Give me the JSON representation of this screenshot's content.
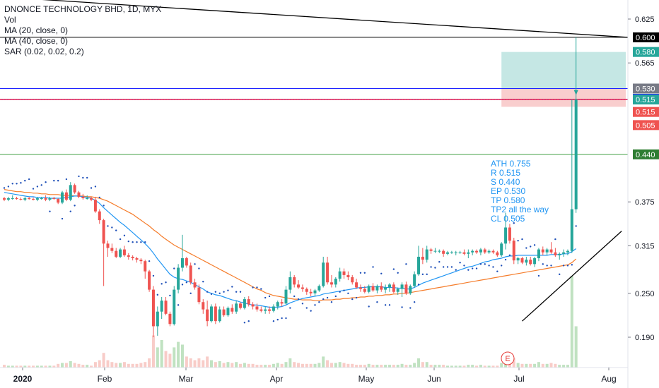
{
  "legend": {
    "title": "DNONCE TECHNOLOGY BHD, 1D, MYX",
    "vol": "Vol",
    "ma20": "MA (20, close, 0)",
    "ma40": "MA (40, close, 0)",
    "sar": "SAR (0.02, 0.02, 0.2)"
  },
  "annotation": {
    "lines": [
      "ATH 0.755",
      "R 0.515",
      "S 0.440",
      "EP 0.530",
      "TP 0.580",
      "TP2 all the way",
      "CL 0.505"
    ]
  },
  "earnings_marker": "E",
  "colors": {
    "up": "#26a69a",
    "down": "#ef5350",
    "ma20": "#2196f3",
    "ma40": "#f57c2a",
    "sar": "#1e4fb8",
    "hline_black": "#000000",
    "hline_blue": "#1e22ff",
    "hline_red": "#c2185b",
    "hline_green": "#43a047",
    "target_zone": "#b2dfdb",
    "stop_zone": "#f8c9c9"
  },
  "chart_data": {
    "type": "candlestick",
    "title": "DNONCE TECHNOLOGY BHD, 1D, MYX",
    "ylim": [
      0.145,
      0.64
    ],
    "y_ticks": [
      "0.625",
      "0.565",
      "0.375",
      "0.315",
      "0.250",
      "0.190"
    ],
    "x_tick_labels": [
      "2020",
      "Feb",
      "Mar",
      "Apr",
      "May",
      "Jun",
      "Jul",
      "Aug"
    ],
    "price_tags": [
      {
        "label": "0.600",
        "value": 0.6,
        "color": "#000000"
      },
      {
        "label": "0.580",
        "value": 0.58,
        "color": "#26a69a"
      },
      {
        "label": "0.530",
        "value": 0.53,
        "color": "#787b86"
      },
      {
        "label": "0.530",
        "value": 0.516,
        "color": "#1e22ff"
      },
      {
        "label": "0.515",
        "value": 0.515,
        "color": "#26a69a"
      },
      {
        "label": "0.515",
        "value": 0.498,
        "color": "#ef5350"
      },
      {
        "label": "0.505",
        "value": 0.48,
        "color": "#ef5350"
      },
      {
        "label": "0.440",
        "value": 0.44,
        "color": "#2e7d32"
      }
    ],
    "horizontal_lines": [
      {
        "name": "black",
        "value": 0.6
      },
      {
        "name": "blue",
        "value": 0.53
      },
      {
        "name": "red",
        "value": 0.515
      },
      {
        "name": "green",
        "value": 0.44
      }
    ],
    "trendlines": [
      {
        "from": [
          0,
          0.655
        ],
        "to": [
          146,
          0.6
        ]
      },
      {
        "from": [
          125,
          0.212
        ],
        "to": [
          149,
          0.335
        ]
      }
    ],
    "zones": {
      "target": {
        "from_bar": 120,
        "to_bar": 149,
        "top": 0.58,
        "bottom": 0.53
      },
      "stop": {
        "from_bar": 120,
        "to_bar": 149,
        "top": 0.53,
        "bottom": 0.505
      }
    },
    "candles": [
      [
        0.38,
        0.382,
        0.376,
        0.378
      ],
      [
        0.378,
        0.382,
        0.376,
        0.38
      ],
      [
        0.38,
        0.384,
        0.378,
        0.38
      ],
      [
        0.38,
        0.382,
        0.378,
        0.379
      ],
      [
        0.379,
        0.381,
        0.377,
        0.378
      ],
      [
        0.378,
        0.382,
        0.376,
        0.38
      ],
      [
        0.38,
        0.382,
        0.378,
        0.379
      ],
      [
        0.379,
        0.381,
        0.377,
        0.378
      ],
      [
        0.378,
        0.382,
        0.376,
        0.38
      ],
      [
        0.38,
        0.382,
        0.378,
        0.38
      ],
      [
        0.38,
        0.384,
        0.376,
        0.378
      ],
      [
        0.378,
        0.382,
        0.376,
        0.38
      ],
      [
        0.38,
        0.382,
        0.378,
        0.379
      ],
      [
        0.379,
        0.38,
        0.372,
        0.374
      ],
      [
        0.374,
        0.39,
        0.372,
        0.388
      ],
      [
        0.388,
        0.392,
        0.376,
        0.378
      ],
      [
        0.378,
        0.402,
        0.376,
        0.398
      ],
      [
        0.398,
        0.4,
        0.386,
        0.388
      ],
      [
        0.388,
        0.39,
        0.38,
        0.382
      ],
      [
        0.382,
        0.386,
        0.378,
        0.38
      ],
      [
        0.38,
        0.384,
        0.378,
        0.38
      ],
      [
        0.38,
        0.382,
        0.376,
        0.378
      ],
      [
        0.378,
        0.382,
        0.36,
        0.362
      ],
      [
        0.362,
        0.365,
        0.345,
        0.35
      ],
      [
        0.35,
        0.352,
        0.26,
        0.318
      ],
      [
        0.318,
        0.322,
        0.3,
        0.312
      ],
      [
        0.312,
        0.318,
        0.305,
        0.308
      ],
      [
        0.308,
        0.312,
        0.298,
        0.3
      ],
      [
        0.3,
        0.312,
        0.298,
        0.31
      ],
      [
        0.31,
        0.315,
        0.3,
        0.302
      ],
      [
        0.302,
        0.305,
        0.296,
        0.3
      ],
      [
        0.3,
        0.302,
        0.295,
        0.298
      ],
      [
        0.298,
        0.3,
        0.292,
        0.296
      ],
      [
        0.296,
        0.298,
        0.29,
        0.294
      ],
      [
        0.294,
        0.296,
        0.27,
        0.28
      ],
      [
        0.28,
        0.282,
        0.252,
        0.255
      ],
      [
        0.255,
        0.26,
        0.19,
        0.205
      ],
      [
        0.205,
        0.232,
        0.192,
        0.225
      ],
      [
        0.225,
        0.245,
        0.215,
        0.24
      ],
      [
        0.24,
        0.245,
        0.22,
        0.222
      ],
      [
        0.222,
        0.225,
        0.205,
        0.208
      ],
      [
        0.208,
        0.26,
        0.206,
        0.255
      ],
      [
        0.255,
        0.29,
        0.25,
        0.285
      ],
      [
        0.285,
        0.33,
        0.28,
        0.298
      ],
      [
        0.298,
        0.3,
        0.285,
        0.288
      ],
      [
        0.288,
        0.292,
        0.262,
        0.265
      ],
      [
        0.265,
        0.27,
        0.255,
        0.258
      ],
      [
        0.258,
        0.262,
        0.235,
        0.238
      ],
      [
        0.238,
        0.242,
        0.222,
        0.228
      ],
      [
        0.228,
        0.24,
        0.205,
        0.212
      ],
      [
        0.212,
        0.235,
        0.21,
        0.232
      ],
      [
        0.232,
        0.236,
        0.208,
        0.212
      ],
      [
        0.212,
        0.232,
        0.21,
        0.228
      ],
      [
        0.228,
        0.232,
        0.218,
        0.22
      ],
      [
        0.22,
        0.232,
        0.218,
        0.23
      ],
      [
        0.23,
        0.235,
        0.222,
        0.225
      ],
      [
        0.225,
        0.24,
        0.222,
        0.236
      ],
      [
        0.236,
        0.238,
        0.228,
        0.23
      ],
      [
        0.23,
        0.245,
        0.228,
        0.242
      ],
      [
        0.242,
        0.246,
        0.232,
        0.235
      ],
      [
        0.235,
        0.238,
        0.228,
        0.232
      ],
      [
        0.232,
        0.236,
        0.225,
        0.228
      ],
      [
        0.228,
        0.232,
        0.224,
        0.226
      ],
      [
        0.226,
        0.232,
        0.222,
        0.228
      ],
      [
        0.228,
        0.232,
        0.222,
        0.226
      ],
      [
        0.226,
        0.235,
        0.224,
        0.232
      ],
      [
        0.232,
        0.24,
        0.228,
        0.238
      ],
      [
        0.238,
        0.242,
        0.232,
        0.236
      ],
      [
        0.236,
        0.26,
        0.234,
        0.255
      ],
      [
        0.255,
        0.28,
        0.25,
        0.272
      ],
      [
        0.272,
        0.275,
        0.258,
        0.262
      ],
      [
        0.262,
        0.268,
        0.256,
        0.258
      ],
      [
        0.258,
        0.262,
        0.252,
        0.256
      ],
      [
        0.256,
        0.258,
        0.248,
        0.252
      ],
      [
        0.252,
        0.256,
        0.246,
        0.25
      ],
      [
        0.25,
        0.256,
        0.246,
        0.254
      ],
      [
        0.254,
        0.262,
        0.252,
        0.26
      ],
      [
        0.26,
        0.3,
        0.258,
        0.292
      ],
      [
        0.292,
        0.3,
        0.262,
        0.265
      ],
      [
        0.265,
        0.275,
        0.258,
        0.262
      ],
      [
        0.262,
        0.272,
        0.258,
        0.27
      ],
      [
        0.27,
        0.285,
        0.266,
        0.28
      ],
      [
        0.28,
        0.284,
        0.27,
        0.275
      ],
      [
        0.275,
        0.28,
        0.268,
        0.272
      ],
      [
        0.272,
        0.275,
        0.262,
        0.265
      ],
      [
        0.265,
        0.27,
        0.256,
        0.258
      ],
      [
        0.258,
        0.262,
        0.252,
        0.256
      ],
      [
        0.256,
        0.26,
        0.25,
        0.252
      ],
      [
        0.252,
        0.262,
        0.25,
        0.26
      ],
      [
        0.26,
        0.264,
        0.252,
        0.254
      ],
      [
        0.254,
        0.262,
        0.25,
        0.26
      ],
      [
        0.26,
        0.265,
        0.252,
        0.255
      ],
      [
        0.255,
        0.262,
        0.25,
        0.258
      ],
      [
        0.258,
        0.264,
        0.252,
        0.262
      ],
      [
        0.262,
        0.265,
        0.25,
        0.252
      ],
      [
        0.252,
        0.258,
        0.248,
        0.256
      ],
      [
        0.256,
        0.265,
        0.245,
        0.262
      ],
      [
        0.262,
        0.266,
        0.248,
        0.25
      ],
      [
        0.25,
        0.262,
        0.248,
        0.26
      ],
      [
        0.26,
        0.28,
        0.258,
        0.276
      ],
      [
        0.276,
        0.315,
        0.274,
        0.3
      ],
      [
        0.3,
        0.312,
        0.29,
        0.296
      ],
      [
        0.296,
        0.315,
        0.292,
        0.31
      ],
      [
        0.31,
        0.312,
        0.304,
        0.308
      ],
      [
        0.308,
        0.312,
        0.305,
        0.308
      ],
      [
        0.308,
        0.31,
        0.305,
        0.308
      ],
      [
        0.308,
        0.31,
        0.3,
        0.304
      ],
      [
        0.304,
        0.308,
        0.302,
        0.306
      ],
      [
        0.306,
        0.308,
        0.304,
        0.306
      ],
      [
        0.306,
        0.308,
        0.302,
        0.306
      ],
      [
        0.306,
        0.308,
        0.304,
        0.306
      ],
      [
        0.306,
        0.31,
        0.302,
        0.304
      ],
      [
        0.304,
        0.31,
        0.298,
        0.306
      ],
      [
        0.306,
        0.31,
        0.302,
        0.308
      ],
      [
        0.308,
        0.31,
        0.304,
        0.306
      ],
      [
        0.306,
        0.312,
        0.302,
        0.31
      ],
      [
        0.31,
        0.312,
        0.304,
        0.306
      ],
      [
        0.306,
        0.31,
        0.304,
        0.308
      ],
      [
        0.308,
        0.31,
        0.304,
        0.306
      ],
      [
        0.306,
        0.308,
        0.3,
        0.302
      ],
      [
        0.302,
        0.32,
        0.3,
        0.318
      ],
      [
        0.318,
        0.36,
        0.31,
        0.34
      ],
      [
        0.34,
        0.345,
        0.318,
        0.322
      ],
      [
        0.322,
        0.326,
        0.29,
        0.295
      ],
      [
        0.295,
        0.3,
        0.29,
        0.298
      ],
      [
        0.298,
        0.3,
        0.29,
        0.292
      ],
      [
        0.292,
        0.3,
        0.288,
        0.296
      ],
      [
        0.296,
        0.3,
        0.288,
        0.29
      ],
      [
        0.29,
        0.3,
        0.286,
        0.298
      ],
      [
        0.298,
        0.312,
        0.294,
        0.31
      ],
      [
        0.31,
        0.314,
        0.302,
        0.306
      ],
      [
        0.306,
        0.312,
        0.302,
        0.31
      ],
      [
        0.31,
        0.32,
        0.304,
        0.306
      ],
      [
        0.306,
        0.312,
        0.3,
        0.302
      ],
      [
        0.302,
        0.306,
        0.296,
        0.304
      ],
      [
        0.304,
        0.31,
        0.3,
        0.306
      ],
      [
        0.306,
        0.31,
        0.302,
        0.308
      ],
      [
        0.308,
        0.515,
        0.305,
        0.365
      ],
      [
        0.365,
        0.6,
        0.36,
        0.515
      ]
    ],
    "volume_bars": [
      0.03,
      0.02,
      0.02,
      0.02,
      0.02,
      0.02,
      0.02,
      0.02,
      0.02,
      0.02,
      0.02,
      0.02,
      0.02,
      0.04,
      0.05,
      0.05,
      0.07,
      0.05,
      0.04,
      0.03,
      0.03,
      0.02,
      0.06,
      0.08,
      0.16,
      0.08,
      0.06,
      0.05,
      0.05,
      0.06,
      0.04,
      0.04,
      0.04,
      0.05,
      0.06,
      0.1,
      0.35,
      0.22,
      0.3,
      0.18,
      0.15,
      0.22,
      0.28,
      0.25,
      0.12,
      0.1,
      0.08,
      0.1,
      0.08,
      0.12,
      0.08,
      0.06,
      0.07,
      0.05,
      0.06,
      0.05,
      0.06,
      0.04,
      0.05,
      0.04,
      0.04,
      0.03,
      0.03,
      0.03,
      0.03,
      0.04,
      0.05,
      0.04,
      0.06,
      0.1,
      0.06,
      0.05,
      0.04,
      0.04,
      0.04,
      0.04,
      0.05,
      0.12,
      0.08,
      0.05,
      0.05,
      0.06,
      0.05,
      0.04,
      0.04,
      0.03,
      0.03,
      0.03,
      0.04,
      0.03,
      0.03,
      0.03,
      0.03,
      0.03,
      0.03,
      0.03,
      0.04,
      0.03,
      0.03,
      0.05,
      0.1,
      0.06,
      0.06,
      0.03,
      0.03,
      0.03,
      0.03,
      0.02,
      0.02,
      0.02,
      0.02,
      0.02,
      0.03,
      0.03,
      0.02,
      0.03,
      0.02,
      0.02,
      0.02,
      0.02,
      0.05,
      0.15,
      0.08,
      0.1,
      0.05,
      0.04,
      0.04,
      0.04,
      0.04,
      0.06,
      0.04,
      0.04,
      0.05,
      0.04,
      0.03,
      0.03,
      0.03,
      1.0,
      0.45
    ],
    "ma20": [
      0.388,
      0.387,
      0.386,
      0.385,
      0.384,
      0.383,
      0.382,
      0.382,
      0.381,
      0.381,
      0.381,
      0.38,
      0.38,
      0.38,
      0.38,
      0.381,
      0.382,
      0.383,
      0.383,
      0.382,
      0.381,
      0.38,
      0.377,
      0.373,
      0.367,
      0.362,
      0.357,
      0.352,
      0.347,
      0.343,
      0.338,
      0.333,
      0.328,
      0.323,
      0.318,
      0.312,
      0.305,
      0.297,
      0.29,
      0.283,
      0.276,
      0.272,
      0.27,
      0.269,
      0.267,
      0.265,
      0.262,
      0.259,
      0.256,
      0.252,
      0.25,
      0.248,
      0.247,
      0.245,
      0.243,
      0.241,
      0.24,
      0.238,
      0.237,
      0.235,
      0.234,
      0.234,
      0.233,
      0.232,
      0.231,
      0.231,
      0.231,
      0.232,
      0.234,
      0.237,
      0.239,
      0.241,
      0.243,
      0.244,
      0.245,
      0.246,
      0.247,
      0.249,
      0.25,
      0.251,
      0.252,
      0.253,
      0.254,
      0.255,
      0.256,
      0.257,
      0.258,
      0.258,
      0.259,
      0.259,
      0.259,
      0.259,
      0.258,
      0.258,
      0.258,
      0.257,
      0.257,
      0.256,
      0.256,
      0.258,
      0.261,
      0.264,
      0.266,
      0.268,
      0.27,
      0.272,
      0.274,
      0.276,
      0.278,
      0.28,
      0.282,
      0.284,
      0.286,
      0.287,
      0.289,
      0.291,
      0.293,
      0.294,
      0.296,
      0.297,
      0.298,
      0.3,
      0.301,
      0.301,
      0.302,
      0.302,
      0.302,
      0.302,
      0.302,
      0.302,
      0.302,
      0.302,
      0.303,
      0.303,
      0.303,
      0.304,
      0.304,
      0.307,
      0.311
    ],
    "ma40": [
      0.392,
      0.391,
      0.39,
      0.389,
      0.389,
      0.388,
      0.388,
      0.387,
      0.387,
      0.386,
      0.386,
      0.385,
      0.385,
      0.385,
      0.384,
      0.384,
      0.384,
      0.383,
      0.383,
      0.383,
      0.382,
      0.382,
      0.381,
      0.38,
      0.378,
      0.376,
      0.373,
      0.37,
      0.367,
      0.364,
      0.361,
      0.358,
      0.354,
      0.35,
      0.346,
      0.342,
      0.337,
      0.333,
      0.328,
      0.324,
      0.32,
      0.316,
      0.313,
      0.31,
      0.307,
      0.304,
      0.301,
      0.298,
      0.295,
      0.292,
      0.289,
      0.286,
      0.283,
      0.28,
      0.277,
      0.274,
      0.271,
      0.268,
      0.265,
      0.262,
      0.259,
      0.256,
      0.254,
      0.251,
      0.249,
      0.247,
      0.246,
      0.245,
      0.244,
      0.243,
      0.242,
      0.242,
      0.241,
      0.241,
      0.241,
      0.24,
      0.24,
      0.241,
      0.241,
      0.241,
      0.242,
      0.242,
      0.243,
      0.243,
      0.244,
      0.244,
      0.245,
      0.245,
      0.246,
      0.246,
      0.247,
      0.247,
      0.248,
      0.248,
      0.249,
      0.249,
      0.25,
      0.25,
      0.251,
      0.252,
      0.253,
      0.254,
      0.255,
      0.256,
      0.257,
      0.258,
      0.259,
      0.26,
      0.261,
      0.262,
      0.263,
      0.264,
      0.265,
      0.266,
      0.267,
      0.268,
      0.269,
      0.27,
      0.271,
      0.272,
      0.273,
      0.274,
      0.275,
      0.276,
      0.277,
      0.278,
      0.279,
      0.28,
      0.281,
      0.282,
      0.283,
      0.284,
      0.285,
      0.286,
      0.287,
      0.288,
      0.289,
      0.292,
      0.297
    ]
  }
}
